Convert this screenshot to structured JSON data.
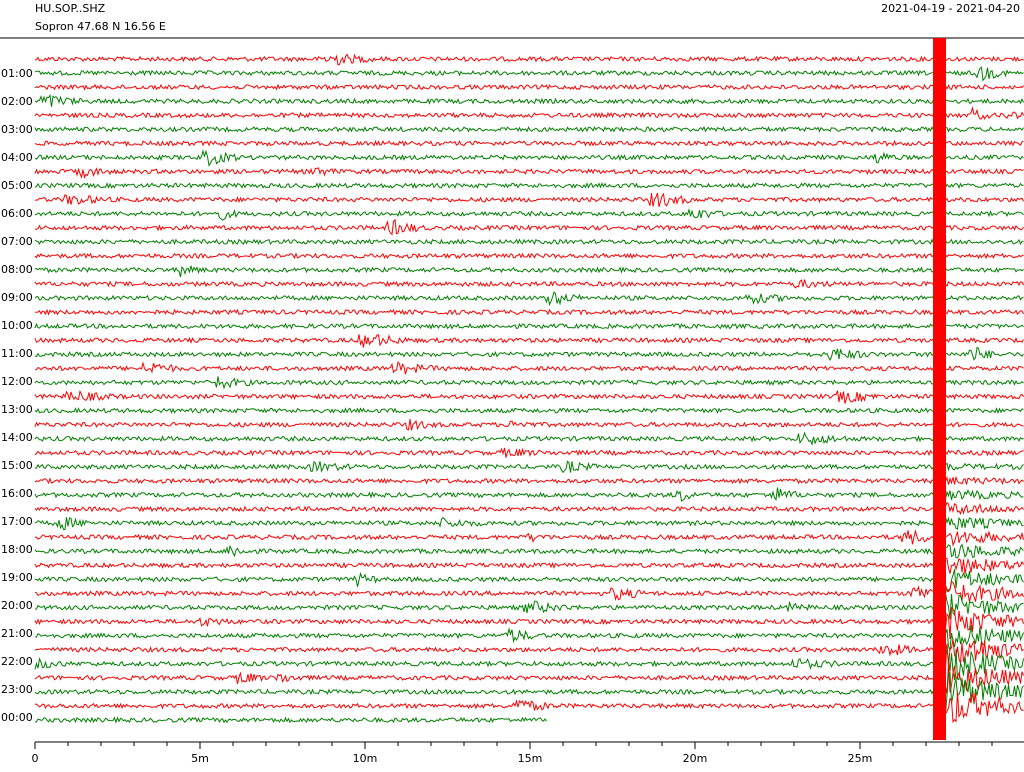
{
  "header": {
    "station": "HU.SOP..SHZ",
    "location": "Sopron  47.68 N 16.56 E",
    "date_range": "2021-04-19 - 2021-04-20"
  },
  "row_labels": [
    "01:00",
    "02:00",
    "03:00",
    "04:00",
    "05:00",
    "06:00",
    "07:00",
    "08:00",
    "09:00",
    "10:00",
    "11:00",
    "12:00",
    "13:00",
    "14:00",
    "15:00",
    "16:00",
    "17:00",
    "18:00",
    "19:00",
    "20:00",
    "21:00",
    "22:00",
    "23:00",
    "00:00"
  ],
  "x_axis": {
    "tick_labels": [
      "0",
      "5m",
      "10m",
      "15m",
      "20m",
      "25m"
    ]
  }
}
